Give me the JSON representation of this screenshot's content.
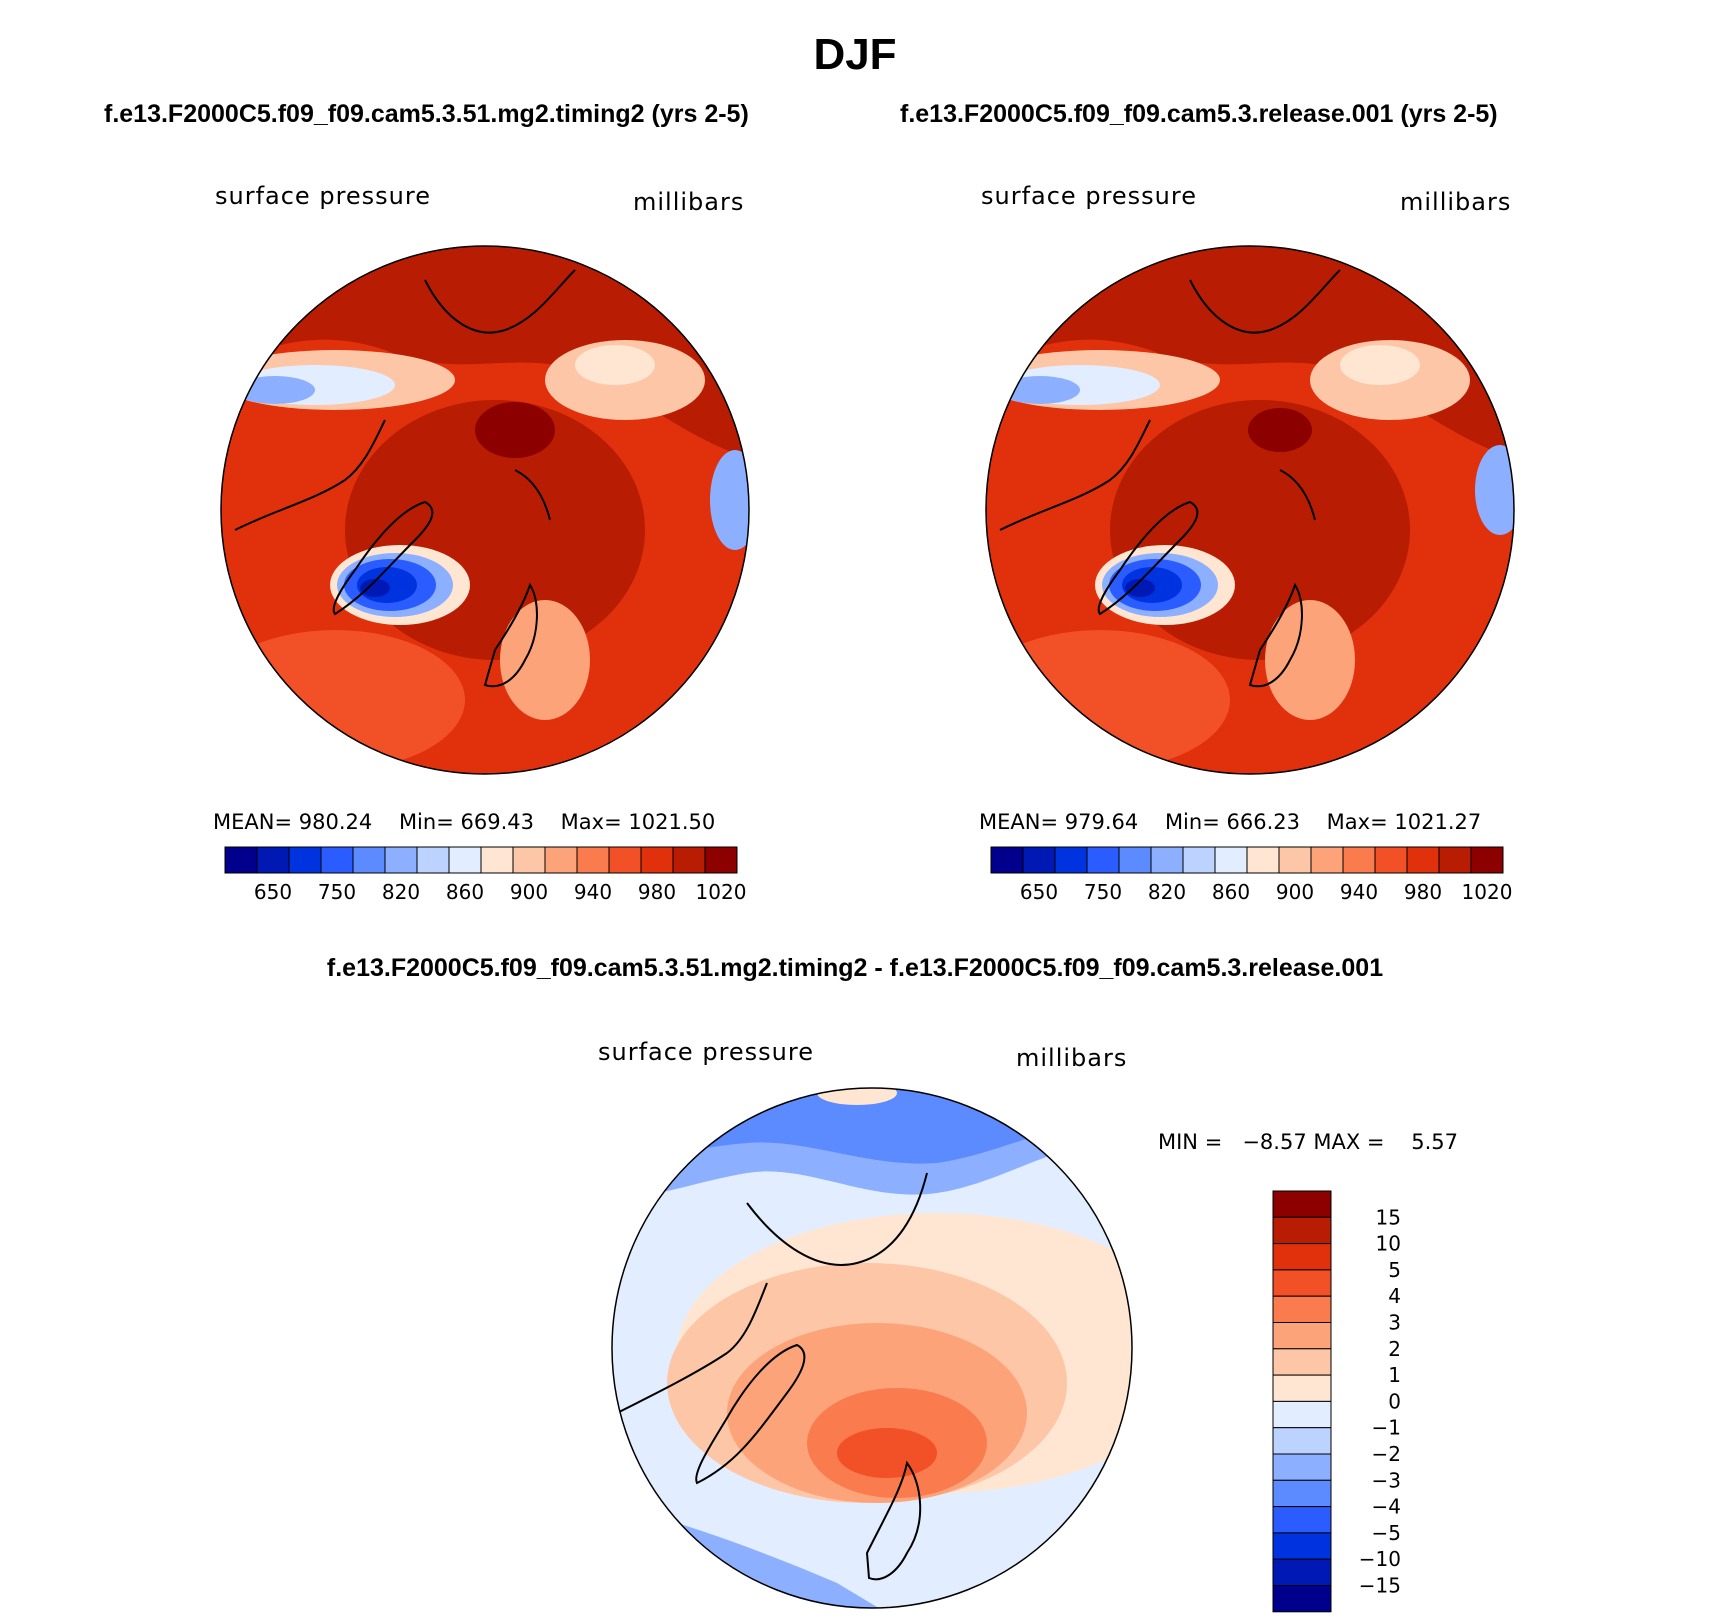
{
  "page": {
    "title": "DJF",
    "diff_title": "f.e13.F2000C5.f09_f09.cam5.3.51.mg2.timing2 - f.e13.F2000C5.f09_f09.cam5.3.release.001"
  },
  "panels": [
    {
      "case": "f.e13.F2000C5.f09_f09.cam5.3.51.mg2.timing2 (yrs 2-5)",
      "variable": "surface pressure",
      "units": "millibars",
      "mean_label": "MEAN=",
      "mean": "980.24",
      "min_label": "Min=",
      "min": "669.43",
      "max_label": "Max=",
      "max": "1021.50"
    },
    {
      "case": "f.e13.F2000C5.f09_f09.cam5.3.release.001 (yrs 2-5)",
      "variable": "surface pressure",
      "units": "millibars",
      "mean_label": "MEAN=",
      "mean": "979.64",
      "min_label": "Min=",
      "min": "666.23",
      "max_label": "Max=",
      "max": "1021.27"
    }
  ],
  "diff_panel": {
    "variable": "surface pressure",
    "units": "millibars",
    "min_label": "MIN =",
    "min": "−8.57",
    "max_label": "MAX =",
    "max": "5.57"
  },
  "chart_data": [
    {
      "type": "heatmap",
      "projection": "north-polar-stereographic",
      "colorbar_orientation": "horizontal",
      "colorbar_levels": [
        "650",
        "750",
        "820",
        "860",
        "900",
        "940",
        "980",
        "1020"
      ],
      "colorbar_colors": [
        "#00008c",
        "#0018b4",
        "#0033e0",
        "#2a5cff",
        "#5b8bff",
        "#8cb0ff",
        "#bdd3ff",
        "#e2eeff",
        "#fee6d2",
        "#fdc7a7",
        "#fca37a",
        "#f97b4e",
        "#f25026",
        "#e0300c",
        "#b81c02",
        "#8c0000"
      ],
      "colorbar_tick_positions": [
        1.5,
        3.5,
        5.5,
        7.5,
        9.5,
        11.5,
        13.5,
        15.5
      ]
    },
    {
      "type": "heatmap",
      "projection": "north-polar-stereographic",
      "colorbar_orientation": "horizontal",
      "colorbar_levels": [
        "650",
        "750",
        "820",
        "860",
        "900",
        "940",
        "980",
        "1020"
      ],
      "colorbar_colors": [
        "#00008c",
        "#0018b4",
        "#0033e0",
        "#2a5cff",
        "#5b8bff",
        "#8cb0ff",
        "#bdd3ff",
        "#e2eeff",
        "#fee6d2",
        "#fdc7a7",
        "#fca37a",
        "#f97b4e",
        "#f25026",
        "#e0300c",
        "#b81c02",
        "#8c0000"
      ],
      "colorbar_tick_positions": [
        1.5,
        3.5,
        5.5,
        7.5,
        9.5,
        11.5,
        13.5,
        15.5
      ]
    },
    {
      "type": "heatmap",
      "projection": "north-polar-stereographic",
      "colorbar_orientation": "vertical",
      "colorbar_levels": [
        "15",
        "10",
        "5",
        "4",
        "3",
        "2",
        "1",
        "0",
        "−1",
        "−2",
        "−3",
        "−4",
        "−5",
        "−10",
        "−15"
      ],
      "colorbar_colors": [
        "#8c0000",
        "#b81c02",
        "#e0300c",
        "#f25026",
        "#f97b4e",
        "#fca37a",
        "#fdc7a7",
        "#fee6d2",
        "#e2eeff",
        "#bdd3ff",
        "#8cb0ff",
        "#5b8bff",
        "#2a5cff",
        "#0033e0",
        "#0018b4",
        "#00008c"
      ]
    }
  ]
}
